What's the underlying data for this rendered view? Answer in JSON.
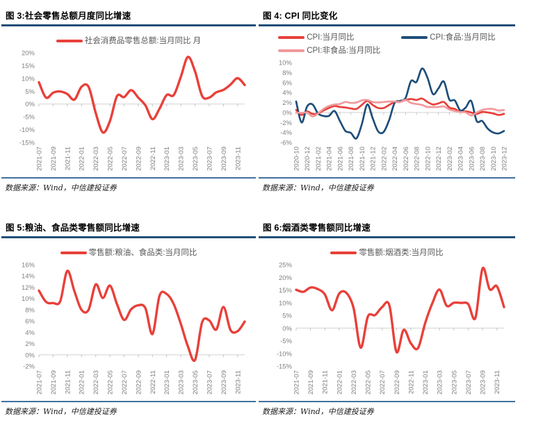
{
  "colors": {
    "red": "#e8403a",
    "navy": "#1f4e79",
    "pink": "#f0999b",
    "title_rule": "#1f4e79",
    "footer_rule": "#41719c",
    "axis_text": "#7f7f7f",
    "legend_text": "#595959",
    "zero_line": "#d2d2d2"
  },
  "panels": [
    {
      "title": "图 3:社会零售总额月度同比增速",
      "source": "数据来源：Wind，中信建投证券",
      "chart_data": {
        "type": "line",
        "y_unit": "%",
        "ylim": [
          -15,
          20
        ],
        "ystep": 5,
        "x": [
          "2021-07",
          "2021-08",
          "2021-09",
          "2021-10",
          "2021-11",
          "2021-12",
          "2022-01",
          "2022-02",
          "2022-03",
          "2022-04",
          "2022-05",
          "2022-06",
          "2022-07",
          "2022-08",
          "2022-09",
          "2022-10",
          "2022-11",
          "2022-12",
          "2023-01",
          "2023-02",
          "2023-03",
          "2023-04",
          "2023-05",
          "2023-06",
          "2023-07",
          "2023-08",
          "2023-09",
          "2023-10",
          "2023-11",
          "2023-12"
        ],
        "x_label_every": 2,
        "series": [
          {
            "name": "社会消费品零售总额:当月同比 月",
            "color": "#e8403a",
            "width": 3.4,
            "values": [
              8.5,
              2.5,
              4.4,
              4.9,
              3.9,
              1.7,
              6.7,
              6.7,
              -3.5,
              -11.1,
              -6.7,
              3.1,
              2.7,
              5.4,
              2.5,
              -0.5,
              -5.9,
              -1.8,
              3.5,
              3.5,
              10.6,
              18.4,
              12.7,
              3.1,
              2.5,
              4.6,
              5.5,
              7.6,
              10.1,
              7.4
            ]
          }
        ]
      }
    },
    {
      "title": "图 4: CPI 同比变化",
      "source": "数据来源：Wind，中信建投证券",
      "chart_data": {
        "type": "line",
        "y_unit": "%",
        "ylim": [
          -6,
          10
        ],
        "ystep": 2,
        "x": [
          "2020-10",
          "2020-11",
          "2020-12",
          "2021-01",
          "2021-02",
          "2021-03",
          "2021-04",
          "2021-05",
          "2021-06",
          "2021-07",
          "2021-08",
          "2021-09",
          "2021-10",
          "2021-11",
          "2021-12",
          "2022-01",
          "2022-02",
          "2022-03",
          "2022-04",
          "2022-05",
          "2022-06",
          "2022-07",
          "2022-08",
          "2022-09",
          "2022-10",
          "2022-11",
          "2022-12",
          "2023-01",
          "2023-02",
          "2023-03",
          "2023-04",
          "2023-05",
          "2023-06",
          "2023-07",
          "2023-08",
          "2023-09",
          "2023-10",
          "2023-11",
          "2023-12"
        ],
        "x_label_every": 2,
        "series": [
          {
            "name": "CPI:当月同比",
            "color": "#e8403a",
            "width": 2.7,
            "values": [
              0.5,
              -0.5,
              0.2,
              -0.3,
              -0.2,
              0.4,
              0.9,
              1.3,
              1.1,
              1.0,
              0.8,
              0.7,
              1.5,
              2.3,
              1.5,
              0.9,
              0.9,
              1.5,
              2.1,
              2.1,
              2.5,
              2.7,
              2.5,
              2.8,
              2.1,
              1.6,
              1.8,
              2.1,
              1.0,
              0.7,
              0.1,
              0.2,
              0.0,
              -0.3,
              0.1,
              0.0,
              -0.2,
              -0.5,
              -0.3
            ]
          },
          {
            "name": "CPI:食品:当月同比",
            "color": "#1f4e79",
            "width": 2.7,
            "values": [
              2.2,
              -2.0,
              1.2,
              1.6,
              -0.2,
              -0.7,
              -0.7,
              0.3,
              -1.7,
              -3.7,
              -4.1,
              -5.2,
              -2.4,
              1.6,
              -1.2,
              -3.8,
              -3.9,
              -1.5,
              1.9,
              2.3,
              2.9,
              6.3,
              6.1,
              8.8,
              7.0,
              3.7,
              4.8,
              6.2,
              2.6,
              2.4,
              0.4,
              1.0,
              2.3,
              -1.7,
              -1.7,
              -3.2,
              -4.0,
              -4.2,
              -3.7
            ]
          },
          {
            "name": "CPI:非食品:当月同比",
            "color": "#f0999b",
            "width": 2.7,
            "values": [
              0.0,
              -0.1,
              0.0,
              -0.8,
              -0.2,
              0.7,
              1.3,
              1.6,
              1.7,
              2.1,
              1.9,
              2.0,
              2.4,
              2.5,
              2.1,
              2.0,
              2.1,
              2.2,
              2.2,
              2.1,
              2.5,
              1.9,
              1.7,
              1.5,
              1.1,
              1.1,
              1.1,
              1.2,
              0.6,
              0.3,
              0.1,
              0.0,
              -0.6,
              0.0,
              0.5,
              0.7,
              0.7,
              0.4,
              0.5
            ]
          }
        ]
      }
    },
    {
      "title": "图 5:粮油、食品类零售额同比增速",
      "source": "数据来源：Wind，中信建投证券",
      "chart_data": {
        "type": "line",
        "y_unit": "%",
        "ylim": [
          -2,
          16
        ],
        "ystep": 2,
        "x": [
          "2021-07",
          "2021-08",
          "2021-09",
          "2021-10",
          "2021-11",
          "2021-12",
          "2022-01",
          "2022-02",
          "2022-03",
          "2022-04",
          "2022-05",
          "2022-06",
          "2022-07",
          "2022-08",
          "2022-09",
          "2022-10",
          "2022-11",
          "2022-12",
          "2023-01",
          "2023-02",
          "2023-03",
          "2023-04",
          "2023-05",
          "2023-06",
          "2023-07",
          "2023-08",
          "2023-09",
          "2023-10",
          "2023-11",
          "2023-12"
        ],
        "x_label_every": 2,
        "series": [
          {
            "name": "零售额:粮油、食品类:当月同比",
            "color": "#e8403a",
            "width": 3.4,
            "values": [
              11.4,
              9.4,
              9.2,
              9.5,
              14.9,
              11.3,
              8.0,
              8.0,
              12.5,
              10.1,
              12.3,
              9.0,
              6.2,
              8.1,
              8.8,
              8.3,
              3.7,
              10.5,
              10.8,
              9.0,
              5.5,
              1.5,
              -0.9,
              5.8,
              6.1,
              4.5,
              8.5,
              4.4,
              4.2,
              5.9
            ]
          }
        ]
      }
    },
    {
      "title": "图 6:烟酒类零售额同比增速",
      "source": "数据来源：Wind，中信建投证券",
      "chart_data": {
        "type": "line",
        "y_unit": "%",
        "ylim": [
          -15,
          25
        ],
        "ystep": 5,
        "x": [
          "2021-07",
          "2021-08",
          "2021-09",
          "2021-10",
          "2021-11",
          "2021-12",
          "2022-01",
          "2022-02",
          "2022-03",
          "2022-04",
          "2022-05",
          "2022-06",
          "2022-07",
          "2022-08",
          "2022-09",
          "2022-10",
          "2022-11",
          "2022-12",
          "2023-01",
          "2023-02",
          "2023-03",
          "2023-04",
          "2023-05",
          "2023-06",
          "2023-07",
          "2023-08",
          "2023-09",
          "2023-10",
          "2023-11",
          "2023-12"
        ],
        "x_label_every": 2,
        "series": [
          {
            "name": "零售额:烟酒类:当月同比",
            "color": "#e8403a",
            "width": 3.4,
            "values": [
              15.1,
              14.3,
              16.0,
              15.4,
              13.3,
              7.0,
              13.6,
              13.9,
              8.0,
              -7.7,
              4.5,
              5.1,
              8.3,
              9.0,
              -9.4,
              -0.7,
              -6.0,
              -7.9,
              2.0,
              9.8,
              15.2,
              8.8,
              10.0,
              9.9,
              9.5,
              4.0,
              23.5,
              15.3,
              16.5,
              8.3
            ]
          }
        ]
      }
    }
  ]
}
